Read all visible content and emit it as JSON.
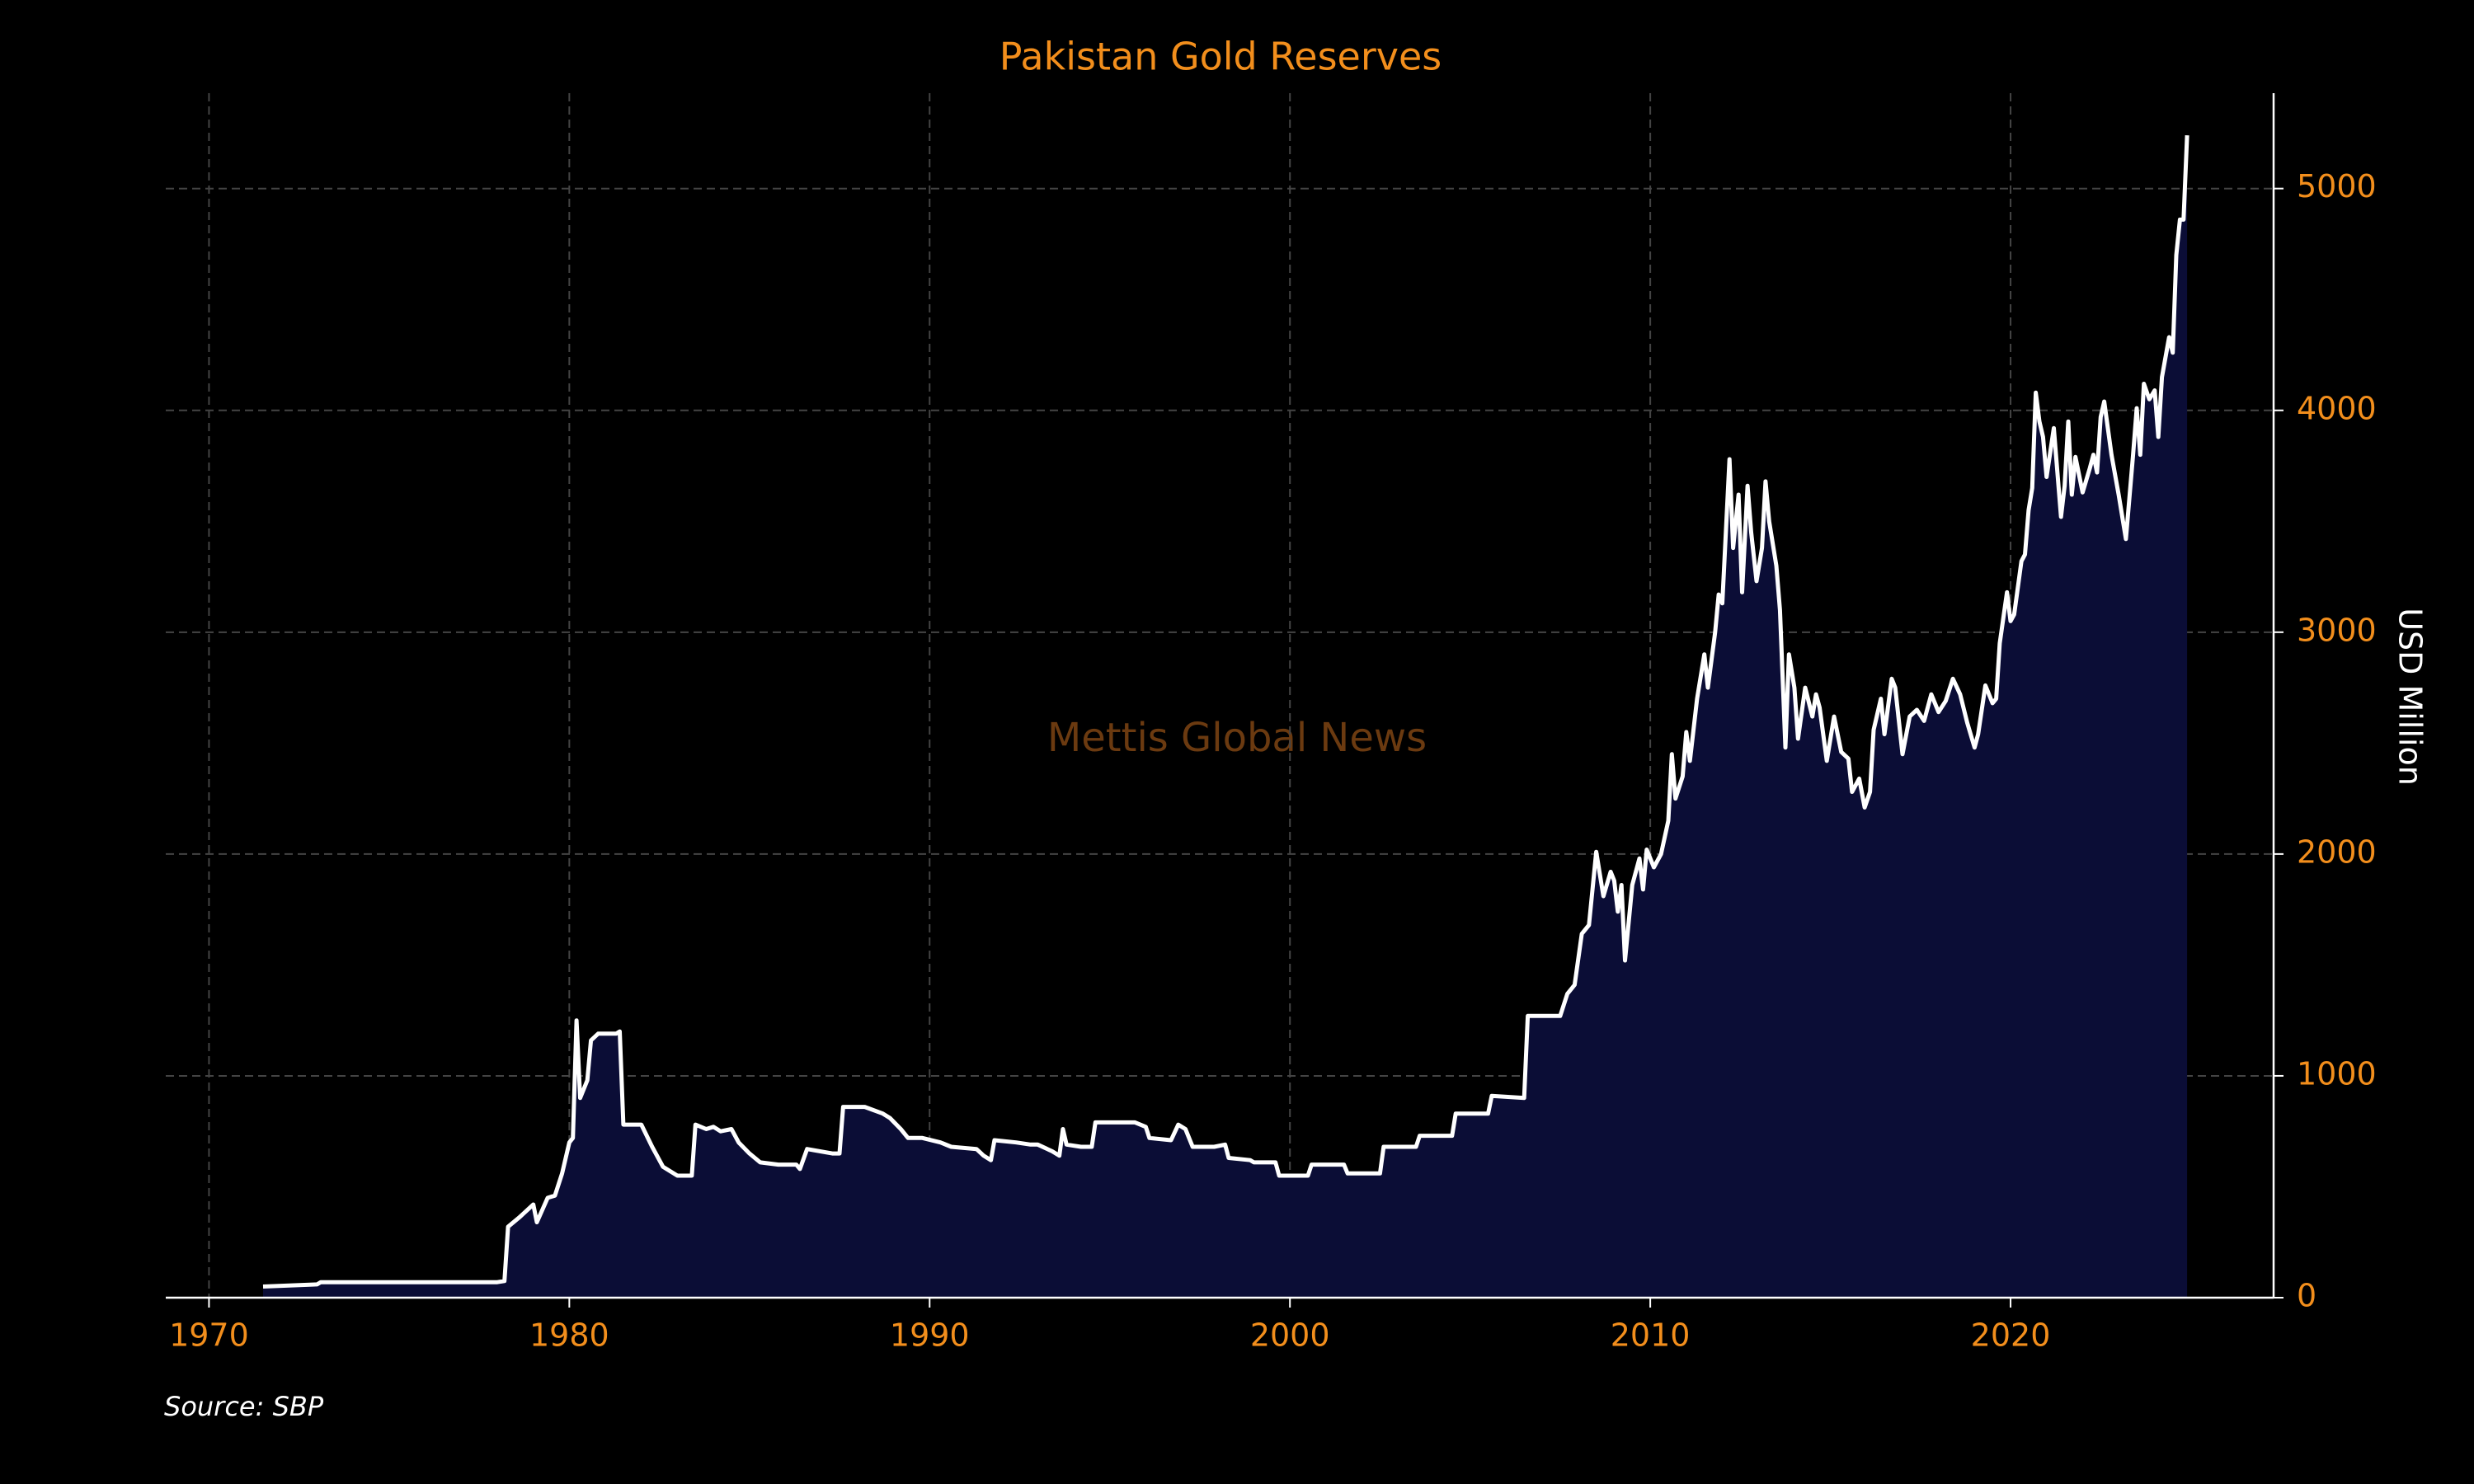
{
  "chart_data": {
    "type": "area",
    "title": "Pakistan Gold Reserves",
    "ylabel": "USD Million",
    "watermark": "Mettis Global News",
    "source": "Source: SBP",
    "xlim": [
      1968.8,
      2027.3
    ],
    "ylim": [
      0,
      5430
    ],
    "xticks": [
      1970,
      1980,
      1990,
      2000,
      2010,
      2020
    ],
    "yticks": [
      0,
      1000,
      2000,
      3000,
      4000,
      5000
    ],
    "grid": true,
    "y_axis_side": "right",
    "line_color": "#ffffff",
    "fill_color": "#0b0d36",
    "x": [
      1971.5,
      1973.0,
      1973.1,
      1978.0,
      1978.2,
      1978.3,
      1978.6,
      1979.0,
      1979.1,
      1979.4,
      1979.6,
      1979.8,
      1980.0,
      1980.1,
      1980.2,
      1980.3,
      1980.5,
      1980.6,
      1980.8,
      1981.3,
      1981.4,
      1981.5,
      1982.0,
      1982.3,
      1982.6,
      1983.0,
      1983.4,
      1983.5,
      1983.8,
      1984.0,
      1984.2,
      1984.5,
      1984.7,
      1985.0,
      1985.3,
      1985.8,
      1986.3,
      1986.4,
      1986.6,
      1987.3,
      1987.5,
      1987.6,
      1988.2,
      1988.7,
      1988.9,
      1989.2,
      1989.4,
      1989.8,
      1990.3,
      1990.6,
      1991.3,
      1991.5,
      1991.7,
      1991.8,
      1992.4,
      1992.8,
      1993.0,
      1993.4,
      1993.6,
      1993.7,
      1993.8,
      1994.2,
      1994.5,
      1994.6,
      1995.3,
      1995.7,
      1996.0,
      1996.1,
      1996.7,
      1996.9,
      1997.1,
      1997.3,
      1997.9,
      1998.2,
      1998.3,
      1998.9,
      1999.0,
      1999.6,
      1999.7,
      2000.5,
      2000.6,
      2001.5,
      2001.6,
      2002.5,
      2002.6,
      2003.5,
      2003.6,
      2004.5,
      2004.6,
      2005.5,
      2005.6,
      2006.5,
      2006.6,
      2007.5,
      2007.7,
      2007.9,
      2008.1,
      2008.3,
      2008.5,
      2008.7,
      2008.9,
      2009.0,
      2009.1,
      2009.2,
      2009.3,
      2009.5,
      2009.7,
      2009.8,
      2009.9,
      2010.1,
      2010.3,
      2010.5,
      2010.6,
      2010.7,
      2010.9,
      2011.0,
      2011.1,
      2011.3,
      2011.5,
      2011.6,
      2011.8,
      2011.9,
      2012.0,
      2012.2,
      2012.3,
      2012.45,
      2012.55,
      2012.7,
      2012.8,
      2012.95,
      2013.1,
      2013.2,
      2013.3,
      2013.5,
      2013.6,
      2013.75,
      2013.85,
      2014.0,
      2014.1,
      2014.3,
      2014.5,
      2014.6,
      2014.7,
      2014.9,
      2015.1,
      2015.3,
      2015.5,
      2015.6,
      2015.8,
      2015.95,
      2016.1,
      2016.2,
      2016.4,
      2016.5,
      2016.7,
      2016.8,
      2017.0,
      2017.2,
      2017.4,
      2017.6,
      2017.8,
      2018.0,
      2018.2,
      2018.4,
      2018.6,
      2018.8,
      2019.0,
      2019.1,
      2019.3,
      2019.5,
      2019.6,
      2019.7,
      2019.9,
      2020.0,
      2020.1,
      2020.3,
      2020.4,
      2020.5,
      2020.6,
      2020.7,
      2020.8,
      2020.9,
      2021.0,
      2021.2,
      2021.4,
      2021.5,
      2021.6,
      2021.7,
      2021.8,
      2022.0,
      2022.2,
      2022.3,
      2022.4,
      2022.5,
      2022.6,
      2022.8,
      2023.0,
      2023.2,
      2023.4,
      2023.5,
      2023.6,
      2023.7,
      2023.85,
      2024.0,
      2024.1,
      2024.2,
      2024.4,
      2024.5,
      2024.6,
      2024.7,
      2024.8,
      2024.9
    ],
    "values": [
      50,
      60,
      70,
      70,
      75,
      320,
      360,
      420,
      340,
      450,
      460,
      560,
      700,
      720,
      1250,
      900,
      980,
      1160,
      1190,
      1190,
      1200,
      780,
      780,
      680,
      590,
      550,
      550,
      780,
      760,
      770,
      750,
      760,
      700,
      650,
      610,
      600,
      600,
      580,
      670,
      650,
      650,
      860,
      860,
      830,
      810,
      760,
      720,
      720,
      700,
      680,
      670,
      640,
      620,
      710,
      700,
      690,
      690,
      660,
      640,
      760,
      690,
      680,
      680,
      790,
      790,
      790,
      770,
      720,
      710,
      780,
      760,
      680,
      680,
      690,
      630,
      620,
      610,
      610,
      550,
      550,
      600,
      600,
      560,
      560,
      680,
      680,
      730,
      730,
      830,
      830,
      910,
      900,
      1270,
      1270,
      1370,
      1410,
      1640,
      1680,
      2010,
      1810,
      1920,
      1880,
      1740,
      1860,
      1520,
      1860,
      1980,
      1840,
      2020,
      1940,
      2000,
      2150,
      2450,
      2250,
      2350,
      2550,
      2420,
      2700,
      2900,
      2750,
      3000,
      3170,
      3130,
      3780,
      3380,
      3620,
      3180,
      3660,
      3450,
      3230,
      3380,
      3680,
      3500,
      3300,
      3100,
      2480,
      2900,
      2750,
      2520,
      2750,
      2620,
      2720,
      2660,
      2420,
      2620,
      2460,
      2430,
      2280,
      2340,
      2210,
      2280,
      2560,
      2700,
      2540,
      2790,
      2750,
      2450,
      2620,
      2650,
      2600,
      2720,
      2640,
      2690,
      2790,
      2720,
      2590,
      2480,
      2540,
      2760,
      2680,
      2700,
      2950,
      3180,
      3050,
      3080,
      3320,
      3350,
      3550,
      3650,
      4080,
      3950,
      3880,
      3700,
      3920,
      3520,
      3660,
      3950,
      3620,
      3790,
      3630,
      3740,
      3800,
      3720,
      3970,
      4040,
      3800,
      3620,
      3420,
      3800,
      4010,
      3800,
      4120,
      4050,
      4090,
      3880,
      4150,
      4330,
      4260,
      4700,
      4860,
      4860,
      5240
    ]
  }
}
